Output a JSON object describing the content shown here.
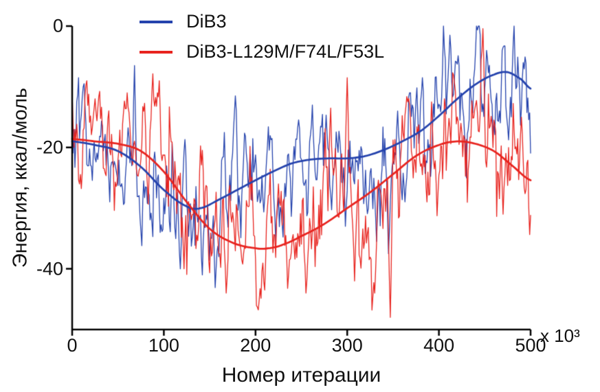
{
  "colors": {
    "background": "#ffffff",
    "axis": "#000000",
    "text": "#111111"
  },
  "chart_data": {
    "type": "line",
    "title": "",
    "xlabel": "Номер итерации",
    "ylabel": "Энергия, ккал/моль",
    "x_unit_label": "x 10³",
    "xlim": [
      0,
      500
    ],
    "ylim": [
      -50,
      0
    ],
    "x_ticks": [
      0,
      100,
      200,
      300,
      400,
      500
    ],
    "y_ticks": [
      0,
      -20,
      -40
    ],
    "grid": false,
    "legend_position": "top-left-inside",
    "series": [
      {
        "name": "DiB3",
        "color": "#2543ad",
        "noise_sd": 4.8,
        "noise_persistence": 0.72,
        "seed": 101,
        "trend": [
          [
            0,
            -19
          ],
          [
            25,
            -19.6
          ],
          [
            50,
            -20.6
          ],
          [
            75,
            -23.2
          ],
          [
            100,
            -27
          ],
          [
            125,
            -29.7
          ],
          [
            140,
            -30
          ],
          [
            160,
            -28.6
          ],
          [
            180,
            -27
          ],
          [
            200,
            -25.4
          ],
          [
            220,
            -23.9
          ],
          [
            240,
            -22.6
          ],
          [
            260,
            -22
          ],
          [
            280,
            -21.8
          ],
          [
            300,
            -21.8
          ],
          [
            320,
            -21.4
          ],
          [
            340,
            -20.4
          ],
          [
            360,
            -19
          ],
          [
            380,
            -17.3
          ],
          [
            400,
            -14.8
          ],
          [
            420,
            -12
          ],
          [
            440,
            -9.6
          ],
          [
            460,
            -8
          ],
          [
            475,
            -7.6
          ],
          [
            490,
            -8.8
          ],
          [
            500,
            -10.3
          ]
        ],
        "spikes": [
          {
            "x": 68,
            "y": -6.5
          },
          {
            "x": 96,
            "y": -34
          },
          {
            "x": 118,
            "y": -40
          },
          {
            "x": 142,
            "y": -41
          },
          {
            "x": 152,
            "y": -35
          },
          {
            "x": 160,
            "y": -38
          },
          {
            "x": 178,
            "y": -11.5
          },
          {
            "x": 222,
            "y": -35.5
          },
          {
            "x": 262,
            "y": -13
          },
          {
            "x": 298,
            "y": -33
          },
          {
            "x": 332,
            "y": -35.5
          },
          {
            "x": 345,
            "y": -37.5
          },
          {
            "x": 355,
            "y": -14
          },
          {
            "x": 382,
            "y": -8.5
          },
          {
            "x": 405,
            "y": 0
          },
          {
            "x": 412,
            "y": -1.5
          },
          {
            "x": 430,
            "y": -25
          },
          {
            "x": 452,
            "y": -4
          },
          {
            "x": 470,
            "y": -3.5
          },
          {
            "x": 492,
            "y": -6
          }
        ]
      },
      {
        "name": "DiB3-L129M/F74L/F53L",
        "color": "#e8241f",
        "noise_sd": 5.4,
        "noise_persistence": 0.7,
        "seed": 202,
        "trend": [
          [
            0,
            -18.6
          ],
          [
            25,
            -19
          ],
          [
            50,
            -19.4
          ],
          [
            75,
            -20.6
          ],
          [
            100,
            -24
          ],
          [
            125,
            -29
          ],
          [
            150,
            -33.4
          ],
          [
            175,
            -35.7
          ],
          [
            200,
            -36.6
          ],
          [
            215,
            -36.6
          ],
          [
            230,
            -36
          ],
          [
            250,
            -34.6
          ],
          [
            275,
            -32.6
          ],
          [
            300,
            -30
          ],
          [
            325,
            -27.4
          ],
          [
            350,
            -24.4
          ],
          [
            375,
            -21.4
          ],
          [
            400,
            -19.6
          ],
          [
            420,
            -19
          ],
          [
            440,
            -19.4
          ],
          [
            460,
            -20.6
          ],
          [
            480,
            -23
          ],
          [
            500,
            -25.4
          ]
        ],
        "spikes": [
          {
            "x": 8,
            "y": -26
          },
          {
            "x": 60,
            "y": -11
          },
          {
            "x": 95,
            "y": -9
          },
          {
            "x": 122,
            "y": -40
          },
          {
            "x": 168,
            "y": -44
          },
          {
            "x": 210,
            "y": -43.5
          },
          {
            "x": 225,
            "y": -26
          },
          {
            "x": 255,
            "y": -44
          },
          {
            "x": 282,
            "y": -13.5
          },
          {
            "x": 300,
            "y": -8.5
          },
          {
            "x": 308,
            "y": -42
          },
          {
            "x": 330,
            "y": -44
          },
          {
            "x": 347,
            "y": -48
          },
          {
            "x": 368,
            "y": -13
          },
          {
            "x": 392,
            "y": -12.5
          },
          {
            "x": 440,
            "y": -13
          },
          {
            "x": 470,
            "y": -31
          },
          {
            "x": 490,
            "y": -15
          }
        ]
      }
    ]
  }
}
